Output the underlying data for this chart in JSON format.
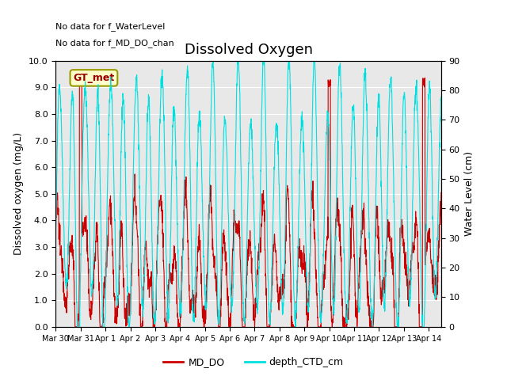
{
  "title": "Dissolved Oxygen",
  "ylabel_left": "Dissolved oxygen (mg/L)",
  "ylabel_right": "Water Level (cm)",
  "ylim_left": [
    0,
    10
  ],
  "ylim_right": [
    0,
    90
  ],
  "text_no_data_1": "No data for f_WaterLevel",
  "text_no_data_2": "No data for f_MD_DO_chan",
  "gt_met_label": "GT_met",
  "legend_entries": [
    "MD_DO",
    "depth_CTD_cm"
  ],
  "colors": {
    "MD_DO": "#cc0000",
    "depth_CTD_cm": "#00e0e0",
    "background_inner": "#e8e8e8",
    "gt_met_bg": "#ffffcc",
    "gt_met_border": "#999900",
    "gt_met_text": "#990000"
  },
  "xtick_labels": [
    "Mar 30",
    "Mar 31",
    "Apr 1",
    "Apr 2",
    "Apr 3",
    "Apr 4",
    "Apr 5",
    "Apr 6",
    "Apr 7",
    "Apr 8",
    "Apr 9",
    "Apr 10",
    "Apr 11",
    "Apr 12",
    "Apr 13",
    "Apr 14"
  ],
  "yticks_left": [
    0.0,
    1.0,
    2.0,
    3.0,
    4.0,
    5.0,
    6.0,
    7.0,
    8.0,
    9.0,
    10.0
  ],
  "yticks_right": [
    0,
    10,
    20,
    30,
    40,
    50,
    60,
    70,
    80,
    90
  ],
  "n_points": 2000,
  "n_days": 15.5
}
